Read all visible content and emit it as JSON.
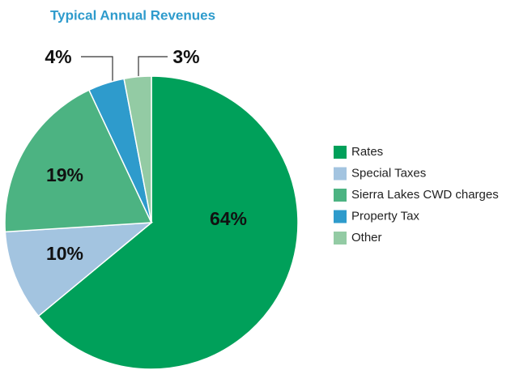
{
  "chart_data": {
    "type": "pie",
    "title": "Typical Annual Revenues",
    "categories": [
      "Rates",
      "Special Taxes",
      "Sierra Lakes CWD charges",
      "Property Tax",
      "Other"
    ],
    "values": [
      64,
      10,
      19,
      4,
      3
    ],
    "value_labels": [
      "64%",
      "10%",
      "19%",
      "4%",
      "3%"
    ],
    "colors": [
      "#00a05a",
      "#a3c4e0",
      "#4cb382",
      "#2e9bcc",
      "#93cba4"
    ],
    "legend": "right"
  }
}
